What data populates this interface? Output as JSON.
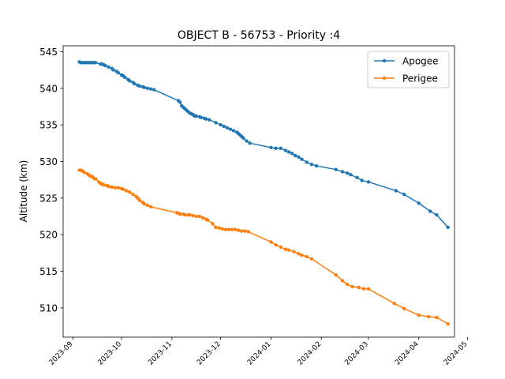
{
  "chart_data": {
    "type": "line",
    "title": "OBJECT B - 56753 - Priority :4",
    "xlabel": "",
    "ylabel": "Altitude (km)",
    "xlim": [
      "2023-08-26",
      "2024-04-23"
    ],
    "ylim": [
      506.0,
      545.8
    ],
    "x_ticks": [
      "2023-09",
      "2023-10",
      "2023-11",
      "2023-12",
      "2024-01",
      "2024-02",
      "2024-03",
      "2024-04",
      "2024-05"
    ],
    "y_ticks": [
      510,
      515,
      520,
      525,
      530,
      535,
      540,
      545
    ],
    "legend_position": "top-right",
    "grid": false,
    "series": [
      {
        "name": "Apogee",
        "color": "#1f77b4",
        "points": [
          [
            "2023-09-05",
            543.6
          ],
          [
            "2023-09-06",
            543.5
          ],
          [
            "2023-09-07",
            543.5
          ],
          [
            "2023-09-08",
            543.5
          ],
          [
            "2023-09-09",
            543.5
          ],
          [
            "2023-09-10",
            543.5
          ],
          [
            "2023-09-11",
            543.5
          ],
          [
            "2023-09-12",
            543.5
          ],
          [
            "2023-09-13",
            543.5
          ],
          [
            "2023-09-14",
            543.5
          ],
          [
            "2023-09-15",
            543.5
          ],
          [
            "2023-09-18",
            543.3
          ],
          [
            "2023-09-19",
            543.3
          ],
          [
            "2023-09-20",
            543.2
          ],
          [
            "2023-09-21",
            543.1
          ],
          [
            "2023-09-23",
            542.9
          ],
          [
            "2023-09-25",
            542.7
          ],
          [
            "2023-09-26",
            542.5
          ],
          [
            "2023-09-28",
            542.3
          ],
          [
            "2023-09-29",
            542.1
          ],
          [
            "2023-10-01",
            541.8
          ],
          [
            "2023-10-02",
            541.7
          ],
          [
            "2023-10-03",
            541.5
          ],
          [
            "2023-10-05",
            541.2
          ],
          [
            "2023-10-06",
            541.0
          ],
          [
            "2023-10-08",
            540.8
          ],
          [
            "2023-10-09",
            540.6
          ],
          [
            "2023-10-11",
            540.4
          ],
          [
            "2023-10-12",
            540.3
          ],
          [
            "2023-10-14",
            540.2
          ],
          [
            "2023-10-15",
            540.1
          ],
          [
            "2023-10-17",
            540.0
          ],
          [
            "2023-10-19",
            539.9
          ],
          [
            "2023-10-21",
            539.8
          ],
          [
            "2023-11-05",
            538.3
          ],
          [
            "2023-11-06",
            538.1
          ],
          [
            "2023-11-07",
            537.6
          ],
          [
            "2023-11-08",
            537.4
          ],
          [
            "2023-11-09",
            537.2
          ],
          [
            "2023-11-10",
            537.0
          ],
          [
            "2023-11-11",
            536.8
          ],
          [
            "2023-11-12",
            536.6
          ],
          [
            "2023-11-13",
            536.5
          ],
          [
            "2023-11-14",
            536.4
          ],
          [
            "2023-11-15",
            536.2
          ],
          [
            "2023-11-16",
            536.2
          ],
          [
            "2023-11-18",
            536.1
          ],
          [
            "2023-11-19",
            536.0
          ],
          [
            "2023-11-21",
            535.9
          ],
          [
            "2023-11-22",
            535.8
          ],
          [
            "2023-11-24",
            535.7
          ],
          [
            "2023-11-28",
            535.3
          ],
          [
            "2023-12-01",
            535.0
          ],
          [
            "2023-12-03",
            534.8
          ],
          [
            "2023-12-05",
            534.6
          ],
          [
            "2023-12-07",
            534.4
          ],
          [
            "2023-12-09",
            534.2
          ],
          [
            "2023-12-11",
            534.0
          ],
          [
            "2023-12-12",
            533.8
          ],
          [
            "2023-12-13",
            533.6
          ],
          [
            "2023-12-14",
            533.4
          ],
          [
            "2023-12-15",
            533.2
          ],
          [
            "2023-12-17",
            532.8
          ],
          [
            "2023-12-19",
            532.5
          ],
          [
            "2024-01-01",
            531.9
          ],
          [
            "2024-01-04",
            531.8
          ],
          [
            "2024-01-07",
            531.8
          ],
          [
            "2024-01-10",
            531.5
          ],
          [
            "2024-01-12",
            531.3
          ],
          [
            "2024-01-14",
            531.1
          ],
          [
            "2024-01-16",
            530.8
          ],
          [
            "2024-01-18",
            530.6
          ],
          [
            "2024-01-20",
            530.3
          ],
          [
            "2024-01-23",
            529.9
          ],
          [
            "2024-01-26",
            529.6
          ],
          [
            "2024-01-29",
            529.4
          ],
          [
            "2024-02-10",
            528.9
          ],
          [
            "2024-02-14",
            528.6
          ],
          [
            "2024-02-17",
            528.4
          ],
          [
            "2024-02-19",
            528.2
          ],
          [
            "2024-02-23",
            527.8
          ],
          [
            "2024-02-26",
            527.4
          ],
          [
            "2024-03-01",
            527.2
          ],
          [
            "2024-03-18",
            526.0
          ],
          [
            "2024-03-23",
            525.5
          ],
          [
            "2024-04-01",
            524.3
          ],
          [
            "2024-04-08",
            523.2
          ],
          [
            "2024-04-12",
            522.7
          ],
          [
            "2024-04-19",
            521.0
          ]
        ]
      },
      {
        "name": "Perigee",
        "color": "#ff7f0e",
        "points": [
          [
            "2023-09-05",
            528.8
          ],
          [
            "2023-09-06",
            528.8
          ],
          [
            "2023-09-07",
            528.7
          ],
          [
            "2023-09-08",
            528.5
          ],
          [
            "2023-09-10",
            528.3
          ],
          [
            "2023-09-11",
            528.1
          ],
          [
            "2023-09-12",
            528.0
          ],
          [
            "2023-09-13",
            527.9
          ],
          [
            "2023-09-14",
            527.7
          ],
          [
            "2023-09-15",
            527.6
          ],
          [
            "2023-09-17",
            527.2
          ],
          [
            "2023-09-18",
            527.0
          ],
          [
            "2023-09-19",
            526.9
          ],
          [
            "2023-09-20",
            526.8
          ],
          [
            "2023-09-22",
            526.7
          ],
          [
            "2023-09-23",
            526.6
          ],
          [
            "2023-09-25",
            526.5
          ],
          [
            "2023-09-27",
            526.4
          ],
          [
            "2023-09-29",
            526.4
          ],
          [
            "2023-10-01",
            526.3
          ],
          [
            "2023-10-02",
            526.2
          ],
          [
            "2023-10-04",
            526.0
          ],
          [
            "2023-10-06",
            525.8
          ],
          [
            "2023-10-08",
            525.5
          ],
          [
            "2023-10-10",
            525.2
          ],
          [
            "2023-10-11",
            525.0
          ],
          [
            "2023-10-12",
            524.7
          ],
          [
            "2023-10-14",
            524.4
          ],
          [
            "2023-10-15",
            524.2
          ],
          [
            "2023-10-17",
            524.0
          ],
          [
            "2023-10-19",
            523.8
          ],
          [
            "2023-11-04",
            523.0
          ],
          [
            "2023-11-05",
            522.9
          ],
          [
            "2023-11-06",
            522.8
          ],
          [
            "2023-11-08",
            522.8
          ],
          [
            "2023-11-09",
            522.7
          ],
          [
            "2023-11-11",
            522.7
          ],
          [
            "2023-11-12",
            522.7
          ],
          [
            "2023-11-14",
            522.6
          ],
          [
            "2023-11-16",
            522.5
          ],
          [
            "2023-11-18",
            522.5
          ],
          [
            "2023-11-20",
            522.3
          ],
          [
            "2023-11-22",
            522.1
          ],
          [
            "2023-11-23",
            522.0
          ],
          [
            "2023-11-26",
            521.5
          ],
          [
            "2023-11-28",
            521.0
          ],
          [
            "2023-11-30",
            520.9
          ],
          [
            "2023-12-02",
            520.8
          ],
          [
            "2023-12-04",
            520.7
          ],
          [
            "2023-12-06",
            520.7
          ],
          [
            "2023-12-08",
            520.7
          ],
          [
            "2023-12-10",
            520.7
          ],
          [
            "2023-12-12",
            520.6
          ],
          [
            "2023-12-14",
            520.5
          ],
          [
            "2023-12-16",
            520.5
          ],
          [
            "2023-12-18",
            520.4
          ],
          [
            "2024-01-01",
            519.0
          ],
          [
            "2024-01-04",
            518.6
          ],
          [
            "2024-01-07",
            518.3
          ],
          [
            "2024-01-10",
            518.0
          ],
          [
            "2024-01-12",
            517.9
          ],
          [
            "2024-01-15",
            517.7
          ],
          [
            "2024-01-18",
            517.4
          ],
          [
            "2024-01-20",
            517.2
          ],
          [
            "2024-01-23",
            517.0
          ],
          [
            "2024-01-26",
            516.7
          ],
          [
            "2024-02-10",
            514.5
          ],
          [
            "2024-02-14",
            513.7
          ],
          [
            "2024-02-17",
            513.2
          ],
          [
            "2024-02-20",
            512.9
          ],
          [
            "2024-02-24",
            512.8
          ],
          [
            "2024-02-27",
            512.6
          ],
          [
            "2024-03-01",
            512.6
          ],
          [
            "2024-03-17",
            510.6
          ],
          [
            "2024-03-23",
            509.9
          ],
          [
            "2024-04-01",
            509.0
          ],
          [
            "2024-04-07",
            508.8
          ],
          [
            "2024-04-12",
            508.7
          ],
          [
            "2024-04-19",
            507.8
          ]
        ]
      }
    ]
  }
}
